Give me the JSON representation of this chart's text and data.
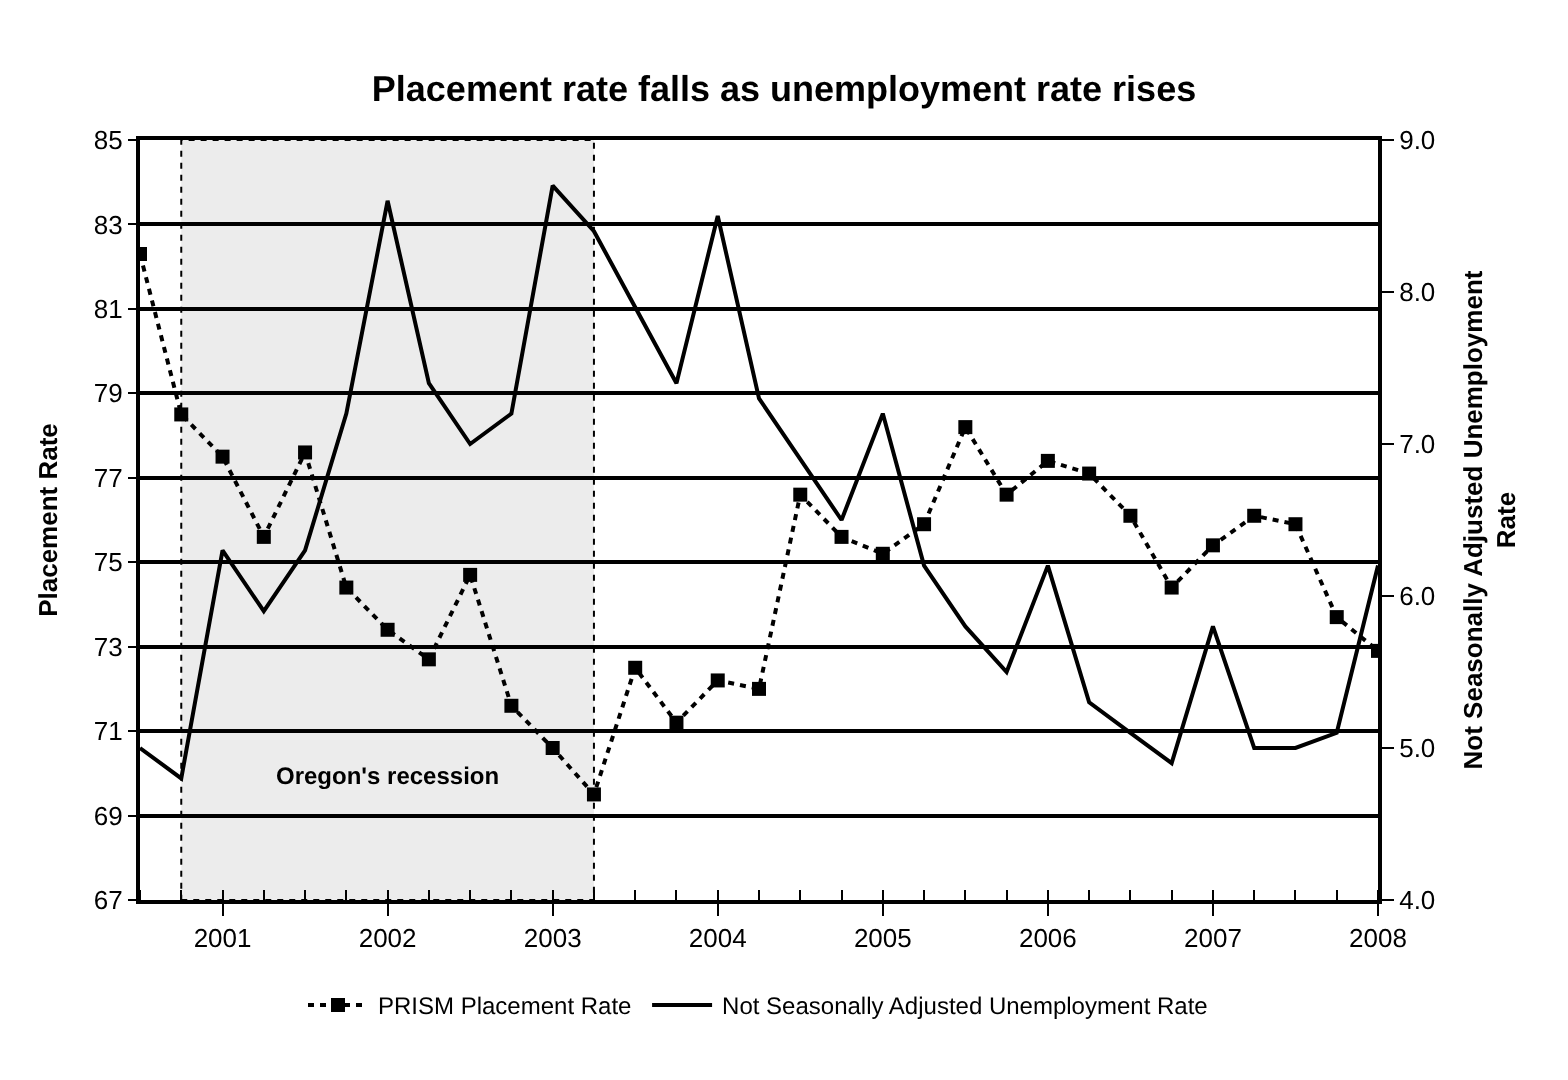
{
  "chart_data": {
    "type": "line",
    "title": "Placement rate falls as unemployment rate rises",
    "ylabel": "Placement Rate",
    "y2label": "Not Seasonally Adjusted Unemployment Rate",
    "x": [
      2000.5,
      2000.75,
      2001,
      2001.25,
      2001.5,
      2001.75,
      2002,
      2002.25,
      2002.5,
      2002.75,
      2003,
      2003.25,
      2003.5,
      2003.75,
      2004,
      2004.25,
      2004.5,
      2004.75,
      2005,
      2005.25,
      2005.5,
      2005.75,
      2006,
      2006.25,
      2006.5,
      2006.75,
      2007,
      2007.25,
      2007.5,
      2007.75,
      2008
    ],
    "series": [
      {
        "name": "PRISM Placement Rate",
        "color": "#000000",
        "marker": "square",
        "line_style": "dotted",
        "values": [
          82.3,
          78.5,
          77.5,
          75.6,
          77.6,
          74.4,
          73.4,
          72.7,
          74.7,
          71.6,
          70.6,
          69.5,
          72.5,
          71.2,
          72.2,
          72.0,
          76.6,
          75.6,
          75.2,
          75.9,
          78.2,
          76.6,
          77.4,
          77.1,
          76.1,
          74.4,
          75.4,
          76.1,
          75.9,
          73.7,
          72.9
        ]
      },
      {
        "name": "Not Seasonally Adjusted Unemployment Rate",
        "color": "#000000",
        "marker": "none",
        "line_style": "solid",
        "axis": "y2",
        "values": [
          5.0,
          4.8,
          6.3,
          5.9,
          6.3,
          7.2,
          8.6,
          7.4,
          7.0,
          7.2,
          8.7,
          8.4,
          7.9,
          7.4,
          8.5,
          7.3,
          6.9,
          6.5,
          7.2,
          6.2,
          5.8,
          5.5,
          6.2,
          5.3,
          5.1,
          4.9,
          5.8,
          5.0,
          5.0,
          5.1,
          6.2
        ]
      }
    ],
    "xlim": [
      2000.5,
      2008
    ],
    "xticks": [
      2001,
      2002,
      2003,
      2004,
      2005,
      2006,
      2007,
      2008
    ],
    "ylim": [
      67,
      85
    ],
    "yticks": [
      67,
      69,
      71,
      73,
      75,
      77,
      79,
      81,
      83,
      85
    ],
    "y2lim": [
      4.0,
      9.0
    ],
    "y2ticks": [
      {
        "value": 4,
        "label": "4.0"
      },
      {
        "value": 5,
        "label": "5.0"
      },
      {
        "value": 6,
        "label": "6.0"
      },
      {
        "value": 7,
        "label": "7.0"
      },
      {
        "value": 8,
        "label": "8.0"
      },
      {
        "value": 9,
        "label": "9.0"
      }
    ],
    "bands": [
      {
        "axis": "x",
        "from": 2000.75,
        "to": 2003.25,
        "label": "Oregon's recession",
        "color": "#ececec"
      }
    ],
    "grid": "y",
    "legend": "bottom"
  }
}
